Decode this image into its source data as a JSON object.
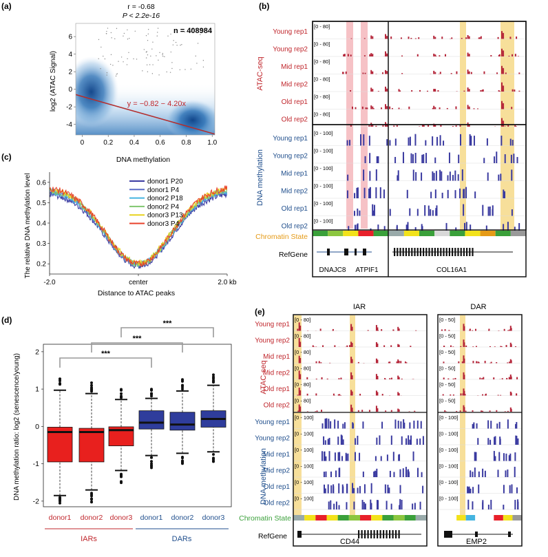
{
  "palette": {
    "atac": "#b5263a",
    "meth": "#3a3aa0",
    "label_red": "#c0272d",
    "label_blue": "#1f4e8c",
    "chromatin_orange": "#e59a16",
    "chromatin_green": "#3aa03a",
    "highlight_pink": "#f6c2c6",
    "highlight_yellow": "#f7df9a",
    "box_red": "#e8201e",
    "box_blue": "#2f3d9c",
    "fit_line": "#b32d2d"
  },
  "chart_data": [
    {
      "panel": "(a)",
      "type": "scatter",
      "stats": [
        "r = -0.68",
        "P < 2.2e-16"
      ],
      "n_label": "n = 408984",
      "equation": "y = −0.82 − 4.20x",
      "xlabel": "DNA methylation",
      "ylabel": "log2 (ATAC Signal)",
      "xlim": [
        -0.05,
        1.02
      ],
      "ylim": [
        -5.2,
        7.5
      ],
      "xticks": [
        "0",
        "0.2",
        "0.4",
        "0.6",
        "0.8",
        "1.0"
      ],
      "yticks": [
        "-4",
        "-2",
        "0",
        "2",
        "4",
        "6"
      ],
      "fit": {
        "intercept": -0.82,
        "slope": -4.2
      },
      "density_centers": [
        {
          "x": 0.07,
          "y": -0.3
        },
        {
          "x": 0.85,
          "y": -3.5
        }
      ]
    },
    {
      "panel": "(c)",
      "type": "line",
      "ylabel": "The relative DNA methylation level",
      "xlabel": "Distance to ATAC peaks",
      "x_tick_labels": [
        "-2.0",
        "center",
        "2.0 kb"
      ],
      "ylim": [
        0.15,
        0.65
      ],
      "yticks": [
        "0.2",
        "0.3",
        "0.4",
        "0.5",
        "0.6"
      ],
      "series": [
        {
          "name": "donor1 P20",
          "color": "#3a3aa0",
          "edge": 0.55,
          "center": 0.19
        },
        {
          "name": "donor1 P4",
          "color": "#5a6bc6",
          "edge": 0.56,
          "center": 0.195
        },
        {
          "name": "donor2 P18",
          "color": "#44b4e0",
          "edge": 0.565,
          "center": 0.2
        },
        {
          "name": "donor2 P4",
          "color": "#7fc66e",
          "edge": 0.57,
          "center": 0.2
        },
        {
          "name": "donor3 P13",
          "color": "#e8d21e",
          "edge": 0.575,
          "center": 0.205
        },
        {
          "name": "donor3 P4",
          "color": "#e8402a",
          "edge": 0.58,
          "center": 0.2
        }
      ]
    },
    {
      "panel": "(d)",
      "type": "box",
      "ylabel": "DNA methylation ratio: log2 (senescence/young)",
      "ylim": [
        -2.15,
        2.2
      ],
      "yticks": [
        "-2",
        "-1",
        "0",
        "1",
        "2"
      ],
      "categories": [
        "donor1",
        "donor2",
        "donor3",
        "donor1",
        "donor2",
        "donor3"
      ],
      "groups": [
        "IARs",
        "DARs"
      ],
      "significance": [
        "***",
        "***",
        "***"
      ],
      "boxes": [
        {
          "group": "IARs",
          "q1": -0.95,
          "median": -0.15,
          "q3": -0.02,
          "whisker_low": -1.85,
          "whisker_high": 0.97
        },
        {
          "group": "IARs",
          "q1": -0.95,
          "median": -0.15,
          "q3": -0.05,
          "whisker_low": -1.7,
          "whisker_high": 0.88
        },
        {
          "group": "IARs",
          "q1": -0.52,
          "median": -0.1,
          "q3": -0.01,
          "whisker_low": -1.18,
          "whisker_high": 0.72
        },
        {
          "group": "DARs",
          "q1": -0.07,
          "median": 0.1,
          "q3": 0.42,
          "whisker_low": -0.78,
          "whisker_high": 0.75
        },
        {
          "group": "DARs",
          "q1": -0.1,
          "median": 0.05,
          "q3": 0.38,
          "whisker_low": -0.72,
          "whisker_high": 0.95
        },
        {
          "group": "DARs",
          "q1": -0.02,
          "median": 0.2,
          "q3": 0.42,
          "whisker_low": -0.68,
          "whisker_high": 1.1
        }
      ]
    }
  ],
  "panels": {
    "a_label": "(a)",
    "b_label": "(b)",
    "c_label": "(c)",
    "d_label": "(d)",
    "e_label": "(e)"
  },
  "tracks_b": {
    "atac_range": "[0 - 80]",
    "meth_range": "[0 - 100]",
    "atac_tracks": [
      "Young rep1",
      "Young rep2",
      "Mid rep1",
      "Mid rep2",
      "Old rep1",
      "Old rep2"
    ],
    "meth_tracks": [
      "Young rep1",
      "Young rep2",
      "Mid rep1",
      "Mid rep2",
      "Old rep1",
      "Old rep2"
    ],
    "atac_group": "ATAC-seq",
    "meth_group": "DNA methylation",
    "chromatin_label": "Chromatin State",
    "refgene_label": "RefGene",
    "genes": [
      "DNAJC8",
      "ATPIF1",
      "COL16A1"
    ]
  },
  "tracks_e": {
    "iar_title": "IAR",
    "dar_title": "DAR",
    "atac_range_iar": "[0 - 80]",
    "atac_range_dar": "[0 - 50]",
    "meth_range": "[0 - 100]",
    "atac_tracks": [
      "Young rep1",
      "Young rep2",
      "Mid rep1",
      "Mid rep2",
      "Old rep1",
      "Old rep2"
    ],
    "meth_tracks": [
      "Young rep1",
      "Young rep2",
      "Mid rep1",
      "Mid rep2",
      "Old rep1",
      "Old rep2"
    ],
    "atac_group": "ATAC-seq",
    "meth_group": "DNA methylation",
    "chromatin_label": "Chromatin State",
    "refgene_label": "RefGene",
    "genes": [
      "CD44",
      "EMP2"
    ]
  }
}
